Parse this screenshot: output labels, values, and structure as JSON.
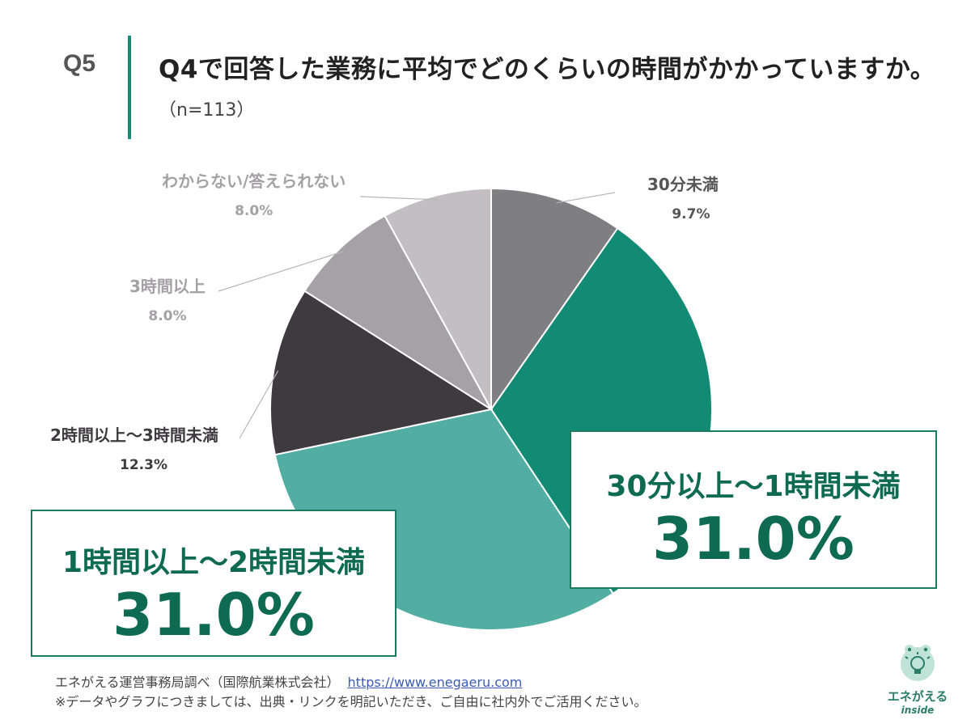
{
  "question": {
    "number": "Q5",
    "title": "Q4で回答した業務に平均でどのくらいの時間がかかっていますか。",
    "sample": "（n=113）"
  },
  "chart_data": {
    "type": "pie",
    "title": "Q4で回答した業務に平均でどのくらいの時間がかかっていますか。",
    "n": 113,
    "unit": "%",
    "slices": [
      {
        "label": "30分未満",
        "value": 9.7,
        "value_label": "9.7%",
        "color": "#7f7e80"
      },
      {
        "label": "30分以上～1時間未満",
        "value": 31.0,
        "value_label": "31.0%",
        "color": "#138a74"
      },
      {
        "label": "1時間以上～2時間未満",
        "value": 31.0,
        "value_label": "31.0%",
        "color": "#52ada3"
      },
      {
        "label": "2時間以上～3時間未満",
        "value": 12.3,
        "value_label": "12.3%",
        "color": "#3e3b3f"
      },
      {
        "label": "3時間以上",
        "value": 8.0,
        "value_label": "8.0%",
        "color": "#a4a2a5"
      },
      {
        "label": "わからない/答えられない",
        "value": 8.0,
        "value_label": "8.0%",
        "color": "#c2bec2"
      }
    ]
  },
  "footer": {
    "source": "エネがえる運営事務局調べ（国際航業株式会社）",
    "url": "https://www.enegaeru.com",
    "note": "※データやグラフにつきましては、出典・リンクを明記いただき、ご自由に社内外でご活用ください。"
  },
  "logo": {
    "name": "エネがえる",
    "sub": "inside"
  }
}
